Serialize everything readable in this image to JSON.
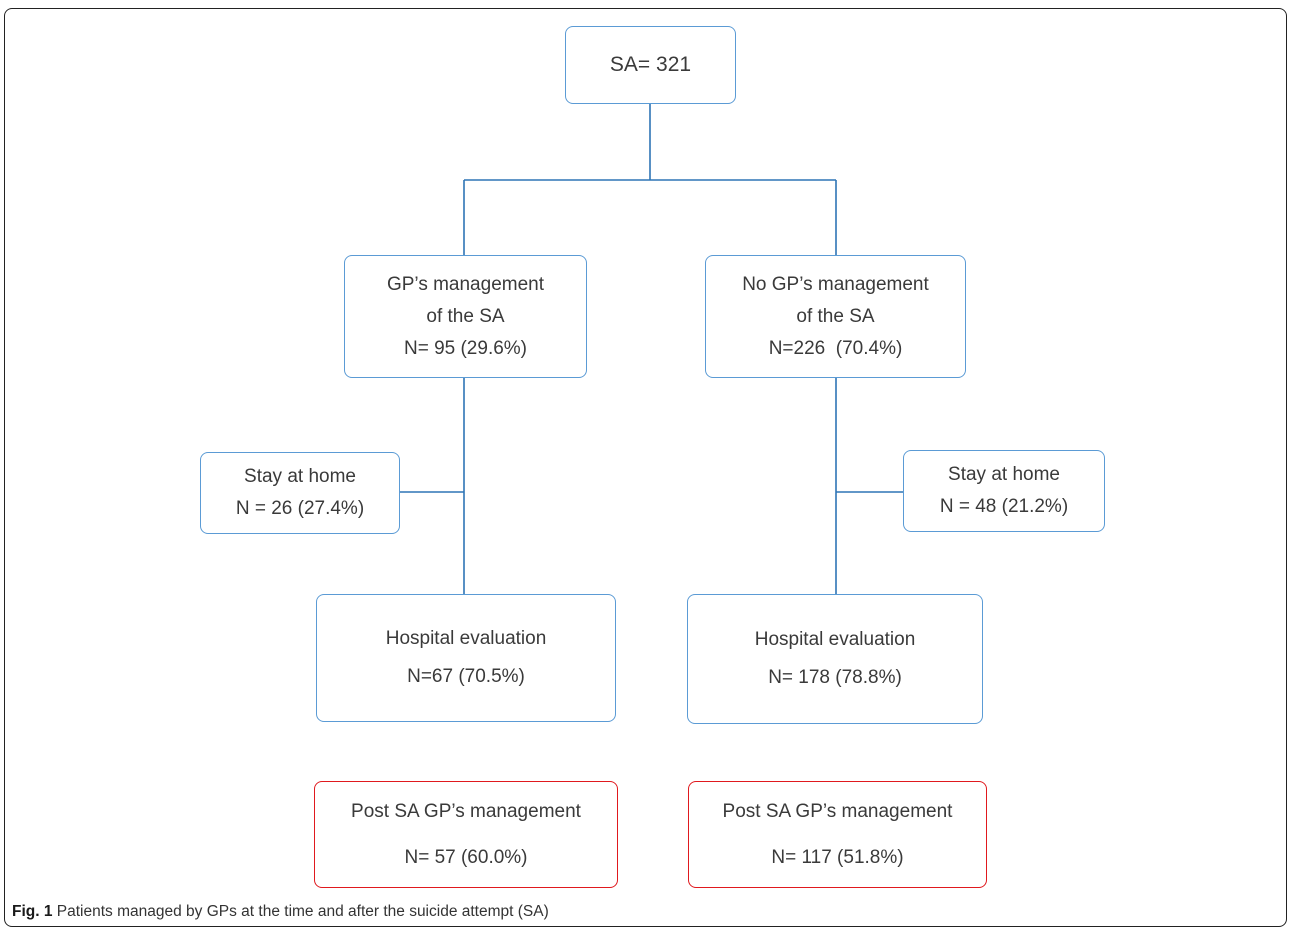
{
  "nodes": {
    "root": {
      "line1": "SA= 321"
    },
    "gp_management": {
      "line1": "GP’s management",
      "line2": "of the SA",
      "line3": "N= 95 (29.6%)"
    },
    "no_gp_management": {
      "line1": "No GP’s management",
      "line2": "of the SA",
      "line3": "N=226  (70.4%)"
    },
    "left_stay_home": {
      "line1": "Stay at home",
      "line2": "N = 26 (27.4%)"
    },
    "right_stay_home": {
      "line1": "Stay at home",
      "line2": "N = 48 (21.2%)"
    },
    "left_hospital": {
      "line1": "Hospital evaluation",
      "line2": "N=67 (70.5%)"
    },
    "right_hospital": {
      "line1": "Hospital evaluation",
      "line2": "N= 178 (78.8%)"
    },
    "left_post_sa": {
      "line1": "Post SA GP’s management",
      "line2": "N= 57 (60.0%)"
    },
    "right_post_sa": {
      "line1": "Post SA GP’s management",
      "line2": "N= 117 (51.8%)"
    }
  },
  "caption": {
    "label": "Fig. 1",
    "text": " Patients managed by GPs at the time and after the suicide attempt (SA)"
  },
  "colors": {
    "box_border_blue": "#5b9bd5",
    "box_border_red": "#e0191e",
    "connector": "#2e75b6",
    "text": "#3a3a3a"
  }
}
